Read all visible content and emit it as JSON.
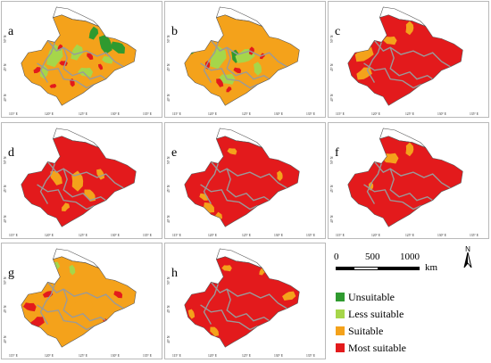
{
  "colors": {
    "unsuitable": "#2f9a2f",
    "less_suitable": "#a6d64a",
    "suitable": "#f4a21b",
    "most_suitable": "#e31a1c",
    "boundary": "#9a9a9a",
    "outline": "#555555"
  },
  "lat_labels": [
    "50° N",
    "45° N",
    "40° N"
  ],
  "lon_labels": [
    "115° E",
    "120° E",
    "125° E",
    "130° E",
    "135° E"
  ],
  "panels": [
    {
      "label": "a",
      "dominant": "suitable",
      "spots": [
        [
          "unsuitable",
          "ne"
        ],
        [
          "less_suitable",
          "center"
        ],
        [
          "most_suitable",
          "scattered"
        ]
      ]
    },
    {
      "label": "b",
      "dominant": "suitable",
      "spots": [
        [
          "unsuitable",
          "nw"
        ],
        [
          "less_suitable",
          "center"
        ],
        [
          "most_suitable",
          "scattered"
        ]
      ]
    },
    {
      "label": "c",
      "dominant": "most_suitable",
      "spots": [
        [
          "suitable",
          "west"
        ]
      ]
    },
    {
      "label": "d",
      "dominant": "most_suitable",
      "spots": [
        [
          "suitable",
          "central"
        ]
      ]
    },
    {
      "label": "e",
      "dominant": "most_suitable",
      "spots": [
        [
          "suitable",
          "south"
        ]
      ]
    },
    {
      "label": "f",
      "dominant": "most_suitable",
      "spots": [
        [
          "less_suitable",
          "north"
        ],
        [
          "suitable",
          "north"
        ]
      ]
    },
    {
      "label": "g",
      "dominant": "suitable",
      "spots": [
        [
          "less_suitable",
          "north"
        ],
        [
          "most_suitable",
          "west"
        ]
      ]
    },
    {
      "label": "h",
      "dominant": "most_suitable",
      "spots": [
        [
          "suitable",
          "edges"
        ]
      ]
    }
  ],
  "scale": {
    "ticks": [
      "0",
      "500",
      "1000"
    ],
    "unit": "km"
  },
  "north_label": "N",
  "legend": [
    {
      "key": "unsuitable",
      "label": "Unsuitable"
    },
    {
      "key": "less_suitable",
      "label": "Less suitable"
    },
    {
      "key": "suitable",
      "label": "Suitable"
    },
    {
      "key": "most_suitable",
      "label": "Most suitable"
    }
  ]
}
